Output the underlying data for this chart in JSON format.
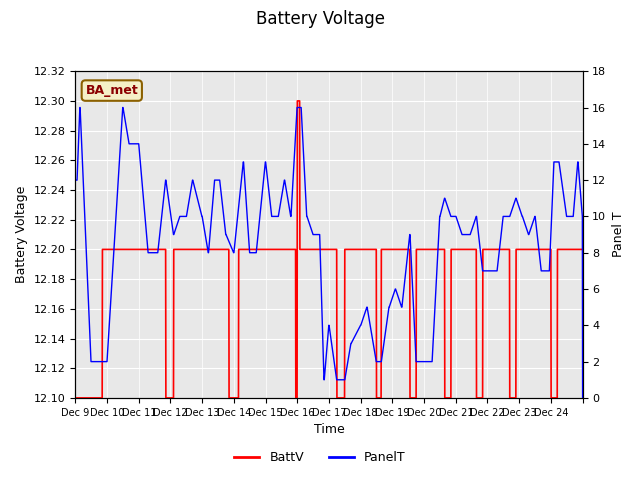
{
  "title": "Battery Voltage",
  "xlabel": "Time",
  "ylabel_left": "Battery Voltage",
  "ylabel_right": "Panel T",
  "ylim_left": [
    12.1,
    12.32
  ],
  "ylim_right": [
    0,
    18
  ],
  "yticks_left": [
    12.1,
    12.12,
    12.14,
    12.16,
    12.18,
    12.2,
    12.22,
    12.24,
    12.26,
    12.28,
    12.3,
    12.32
  ],
  "yticks_right": [
    0,
    2,
    4,
    6,
    8,
    10,
    12,
    14,
    16,
    18
  ],
  "xtick_positions": [
    0,
    1,
    2,
    3,
    4,
    5,
    6,
    7,
    8,
    9,
    10,
    11,
    12,
    13,
    14,
    15,
    16
  ],
  "xtick_labels": [
    "Dec 9",
    "Dec 10",
    "Dec 11",
    "Dec 12",
    "Dec 13",
    "Dec 14",
    "Dec 15",
    "Dec 16",
    "Dec 17",
    "Dec 18",
    "Dec 19",
    "Dec 20",
    "Dec 21",
    "Dec 22",
    "Dec 23",
    "Dec 24",
    ""
  ],
  "legend_labels": [
    "BattV",
    "PanelT"
  ],
  "legend_colors": [
    "red",
    "blue"
  ],
  "bg_color": "#e8e8e8",
  "ba_met_label": "BA_met",
  "ba_met_bg": "#f5f0c8",
  "ba_met_border": "#8b6000"
}
